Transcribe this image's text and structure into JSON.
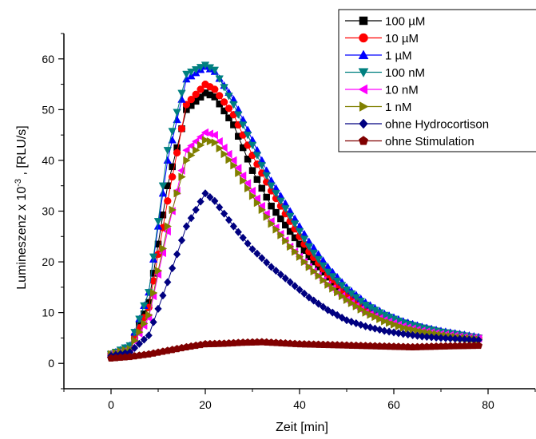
{
  "chart_data": {
    "type": "line",
    "xlabel": "Zeit [min]",
    "ylabel": {
      "prefix": "Lumineszenz x 10",
      "superscript": "-3",
      "suffix": " , [RLU/s]"
    },
    "xlim": [
      -10,
      90
    ],
    "ylim": [
      -5,
      65
    ],
    "xticks": [
      0,
      20,
      40,
      60,
      80
    ],
    "yticks": [
      0,
      10,
      20,
      30,
      40,
      50,
      60
    ],
    "grid": false,
    "legend_position": "top-right",
    "series": [
      {
        "name": "100 µM",
        "color": "#000000",
        "marker": "square",
        "anchors": [
          [
            0,
            1.8
          ],
          [
            4,
            3
          ],
          [
            8,
            12
          ],
          [
            12,
            35
          ],
          [
            16,
            50
          ],
          [
            20,
            53.3
          ],
          [
            22,
            52.5
          ],
          [
            26,
            47
          ],
          [
            30,
            38
          ],
          [
            34,
            31
          ],
          [
            38,
            26
          ],
          [
            42,
            21
          ],
          [
            46,
            17
          ],
          [
            50,
            13
          ],
          [
            54,
            10.5
          ],
          [
            58,
            8.8
          ],
          [
            62,
            7.5
          ],
          [
            66,
            6.6
          ],
          [
            70,
            6
          ],
          [
            74,
            5.5
          ],
          [
            78,
            5
          ]
        ]
      },
      {
        "name": "10 µM",
        "color": "#ff0000",
        "marker": "circle",
        "anchors": [
          [
            0,
            1.8
          ],
          [
            4,
            3
          ],
          [
            8,
            11
          ],
          [
            12,
            32
          ],
          [
            16,
            51
          ],
          [
            20,
            55
          ],
          [
            22,
            54
          ],
          [
            26,
            49
          ],
          [
            30,
            41
          ],
          [
            34,
            34
          ],
          [
            38,
            28
          ],
          [
            42,
            22
          ],
          [
            46,
            17.5
          ],
          [
            50,
            13.5
          ],
          [
            54,
            11
          ],
          [
            58,
            9.2
          ],
          [
            62,
            8
          ],
          [
            66,
            7
          ],
          [
            70,
            6.2
          ],
          [
            74,
            5.6
          ],
          [
            78,
            5
          ]
        ]
      },
      {
        "name": "1 µM",
        "color": "#0000ff",
        "marker": "triangle-up",
        "anchors": [
          [
            0,
            1.8
          ],
          [
            4,
            3.5
          ],
          [
            8,
            14
          ],
          [
            12,
            40
          ],
          [
            16,
            56
          ],
          [
            20,
            58.5
          ],
          [
            22,
            57.5
          ],
          [
            26,
            52
          ],
          [
            30,
            44
          ],
          [
            34,
            36
          ],
          [
            38,
            30
          ],
          [
            42,
            24
          ],
          [
            46,
            19
          ],
          [
            50,
            15
          ],
          [
            54,
            12
          ],
          [
            58,
            9.8
          ],
          [
            62,
            8.3
          ],
          [
            66,
            7.2
          ],
          [
            70,
            6.4
          ],
          [
            74,
            5.8
          ],
          [
            78,
            5.2
          ]
        ]
      },
      {
        "name": "100 nM",
        "color": "#008080",
        "marker": "triangle-down",
        "anchors": [
          [
            0,
            1.8
          ],
          [
            4,
            3.5
          ],
          [
            8,
            14
          ],
          [
            12,
            42
          ],
          [
            16,
            57
          ],
          [
            20,
            58.8
          ],
          [
            22,
            57.8
          ],
          [
            26,
            51
          ],
          [
            30,
            43
          ],
          [
            34,
            35
          ],
          [
            38,
            29
          ],
          [
            42,
            23
          ],
          [
            46,
            18
          ],
          [
            50,
            14.5
          ],
          [
            54,
            11.5
          ],
          [
            58,
            9.5
          ],
          [
            62,
            8
          ],
          [
            66,
            7
          ],
          [
            70,
            6.2
          ],
          [
            74,
            5.6
          ],
          [
            78,
            5
          ]
        ]
      },
      {
        "name": "10 nM",
        "color": "#ff00ff",
        "marker": "triangle-left",
        "anchors": [
          [
            0,
            1.8
          ],
          [
            4,
            2.8
          ],
          [
            8,
            9
          ],
          [
            12,
            26
          ],
          [
            16,
            42
          ],
          [
            20,
            45.5
          ],
          [
            22,
            45
          ],
          [
            26,
            40
          ],
          [
            30,
            34
          ],
          [
            34,
            28
          ],
          [
            38,
            23
          ],
          [
            42,
            19
          ],
          [
            46,
            15.5
          ],
          [
            50,
            12.5
          ],
          [
            54,
            10
          ],
          [
            58,
            8.5
          ],
          [
            62,
            7.3
          ],
          [
            66,
            6.4
          ],
          [
            70,
            5.8
          ],
          [
            74,
            5.3
          ],
          [
            78,
            4.9
          ]
        ]
      },
      {
        "name": "1 nM",
        "color": "#808000",
        "marker": "triangle-right",
        "anchors": [
          [
            0,
            1.8
          ],
          [
            4,
            2.8
          ],
          [
            8,
            9.5
          ],
          [
            12,
            27
          ],
          [
            16,
            40
          ],
          [
            20,
            44
          ],
          [
            22,
            43.5
          ],
          [
            26,
            39
          ],
          [
            30,
            33
          ],
          [
            34,
            27.5
          ],
          [
            38,
            23
          ],
          [
            42,
            19
          ],
          [
            46,
            15.5
          ],
          [
            50,
            12.5
          ],
          [
            54,
            10
          ],
          [
            58,
            8.3
          ],
          [
            62,
            7
          ],
          [
            66,
            6.2
          ],
          [
            70,
            5.6
          ],
          [
            74,
            5.1
          ],
          [
            78,
            4.7
          ]
        ]
      },
      {
        "name": "ohne Hydrocortison",
        "color": "#000080",
        "marker": "diamond",
        "anchors": [
          [
            0,
            1.5
          ],
          [
            4,
            2.2
          ],
          [
            8,
            5.5
          ],
          [
            12,
            16
          ],
          [
            16,
            27
          ],
          [
            20,
            33.5
          ],
          [
            22,
            32
          ],
          [
            26,
            27
          ],
          [
            30,
            22.5
          ],
          [
            34,
            19
          ],
          [
            38,
            16
          ],
          [
            42,
            13
          ],
          [
            46,
            10.5
          ],
          [
            50,
            8.5
          ],
          [
            54,
            7.3
          ],
          [
            58,
            6.4
          ],
          [
            62,
            5.8
          ],
          [
            66,
            5.3
          ],
          [
            70,
            5
          ],
          [
            74,
            4.8
          ],
          [
            78,
            4.6
          ]
        ]
      },
      {
        "name": "ohne Stimulation",
        "color": "#800000",
        "marker": "pentagon",
        "anchors": [
          [
            0,
            1
          ],
          [
            4,
            1.3
          ],
          [
            8,
            1.8
          ],
          [
            12,
            2.5
          ],
          [
            16,
            3.2
          ],
          [
            20,
            3.8
          ],
          [
            24,
            3.9
          ],
          [
            28,
            4.1
          ],
          [
            32,
            4.2
          ],
          [
            36,
            4
          ],
          [
            40,
            3.8
          ],
          [
            44,
            3.7
          ],
          [
            48,
            3.6
          ],
          [
            52,
            3.5
          ],
          [
            56,
            3.4
          ],
          [
            60,
            3.3
          ],
          [
            64,
            3.2
          ],
          [
            68,
            3.3
          ],
          [
            72,
            3.4
          ],
          [
            78,
            3.5
          ]
        ]
      }
    ]
  }
}
